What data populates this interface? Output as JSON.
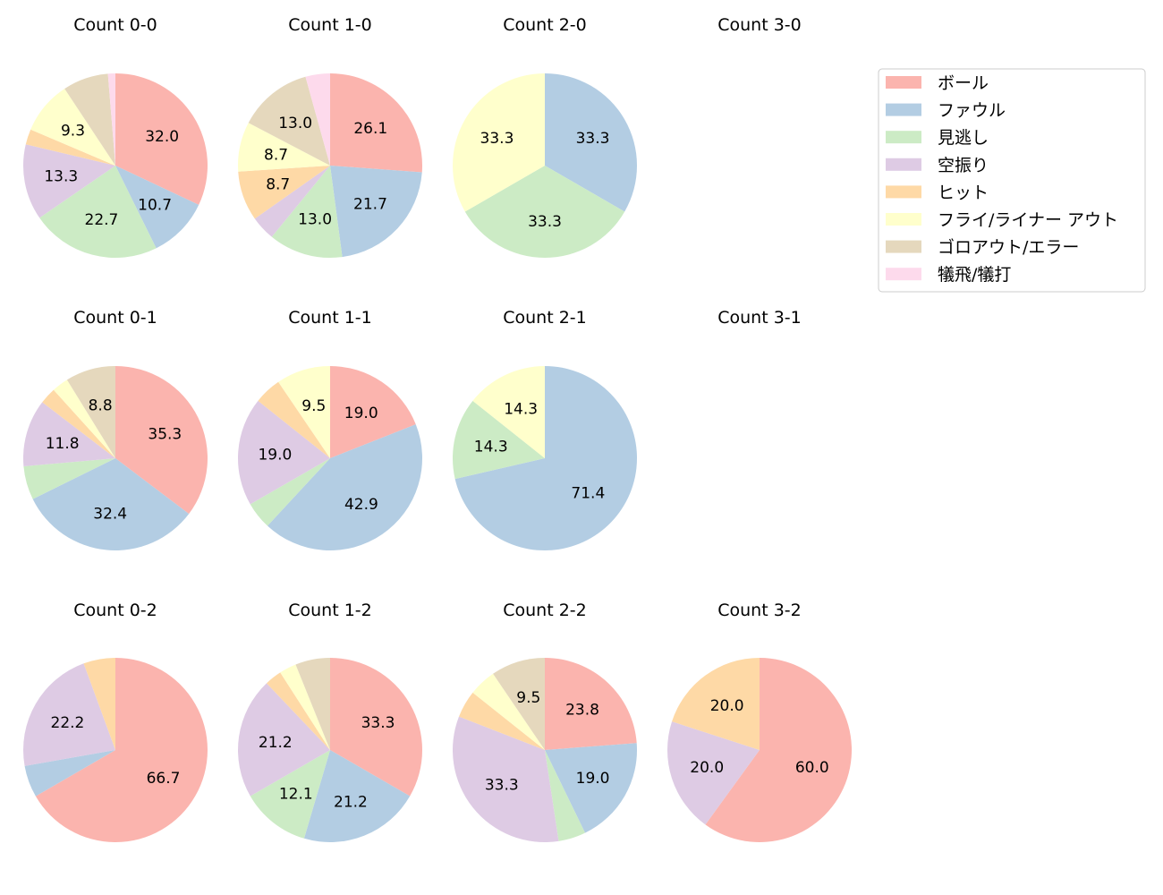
{
  "chart_data": {
    "type": "pie",
    "legend": {
      "placement": "top-right",
      "entries": [
        "ボール",
        "ファウル",
        "見逃し",
        "空振り",
        "ヒット",
        "フライ/ライナー アウト",
        "ゴロアウト/エラー",
        "犠飛/犠打"
      ]
    },
    "colors": [
      "#fbb4ae",
      "#b3cde3",
      "#ccebc5",
      "#decbe4",
      "#fed9a6",
      "#ffffcc",
      "#e5d8bd",
      "#fddaec"
    ],
    "label_threshold_percent": 8,
    "charts": [
      {
        "title": "Count 0-0",
        "values": [
          32.0,
          10.7,
          22.7,
          13.3,
          2.7,
          9.3,
          8.0,
          1.3
        ]
      },
      {
        "title": "Count 1-0",
        "values": [
          26.1,
          21.7,
          13.0,
          4.3,
          8.7,
          8.7,
          13.0,
          4.3
        ]
      },
      {
        "title": "Count 2-0",
        "values": [
          0,
          33.3,
          33.3,
          0,
          0,
          33.3,
          0,
          0
        ]
      },
      {
        "title": "Count 3-0",
        "values": []
      },
      {
        "title": "Count 0-1",
        "values": [
          35.3,
          32.4,
          5.9,
          11.8,
          2.9,
          2.9,
          8.8,
          0
        ]
      },
      {
        "title": "Count 1-1",
        "values": [
          19.0,
          42.9,
          4.8,
          19.0,
          4.8,
          9.5,
          0,
          0
        ]
      },
      {
        "title": "Count 2-1",
        "values": [
          0,
          71.4,
          14.3,
          0,
          0,
          14.3,
          0,
          0
        ]
      },
      {
        "title": "Count 3-1",
        "values": []
      },
      {
        "title": "Count 0-2",
        "values": [
          66.7,
          5.6,
          0,
          22.2,
          5.6,
          0,
          0,
          0
        ]
      },
      {
        "title": "Count 1-2",
        "values": [
          33.3,
          21.2,
          12.1,
          21.2,
          3.0,
          3.0,
          6.1,
          0
        ]
      },
      {
        "title": "Count 2-2",
        "values": [
          23.8,
          19.0,
          4.8,
          33.3,
          4.8,
          4.8,
          9.5,
          0
        ]
      },
      {
        "title": "Count 3-2",
        "values": [
          60.0,
          0,
          0,
          20.0,
          20.0,
          0,
          0,
          0
        ]
      }
    ]
  }
}
